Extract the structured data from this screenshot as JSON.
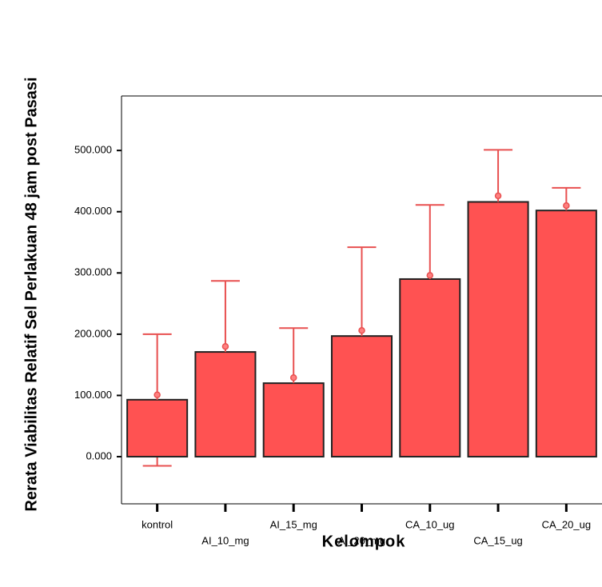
{
  "chart_data": {
    "type": "bar",
    "x_label": "Kelompok",
    "y_label": "Rerata Viabilitas Relatif Sel Perlakuan 48 jam post Pasasi",
    "categories": [
      "kontrol",
      "AI_10_mg",
      "AI_15_mg",
      "AI_20_mg",
      "CA_10_ug",
      "CA_15_ug",
      "CA_20_ug"
    ],
    "values": [
      93,
      171,
      120,
      197,
      290,
      416,
      402
    ],
    "means": [
      101,
      180,
      129,
      206,
      296,
      426,
      410
    ],
    "upper": [
      200,
      287,
      210,
      342,
      411,
      501,
      439
    ],
    "lower": [
      -15,
      null,
      null,
      null,
      null,
      null,
      null
    ],
    "color": "#ff5252",
    "error_color": "#e85050",
    "ylim": [
      -77,
      589
    ],
    "yticks": [
      {
        "value": 0,
        "label": "0.000"
      },
      {
        "value": 100,
        "label": "100.000"
      },
      {
        "value": 200,
        "label": "200.000"
      },
      {
        "value": 300,
        "label": "300.000"
      },
      {
        "value": 400,
        "label": "400.000"
      },
      {
        "value": 500,
        "label": "500.000"
      }
    ]
  }
}
